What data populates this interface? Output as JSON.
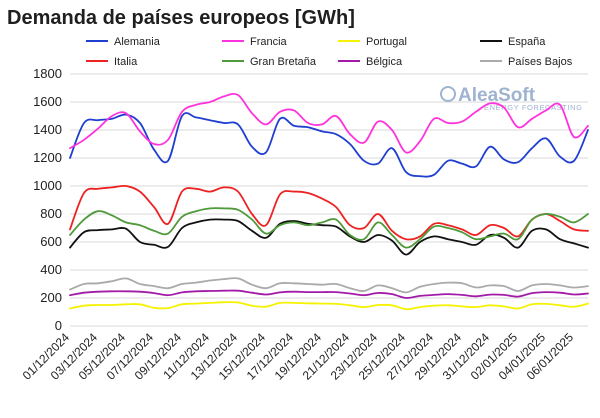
{
  "chart_data": {
    "type": "line",
    "title": "Demanda de países europeos [GWh]",
    "xlabel": "",
    "ylabel": "",
    "ylim": [
      0,
      1800
    ],
    "yticks": [
      0,
      200,
      400,
      600,
      800,
      1000,
      1200,
      1400,
      1600,
      1800
    ],
    "grid": true,
    "legend_position": "top",
    "watermark": {
      "brand": "AleaSoft",
      "tagline": "ENERGY FORECASTING"
    },
    "x": [
      "01/12/2024",
      "02/12/2024",
      "03/12/2024",
      "04/12/2024",
      "05/12/2024",
      "06/12/2024",
      "07/12/2024",
      "08/12/2024",
      "09/12/2024",
      "10/12/2024",
      "11/12/2024",
      "12/12/2024",
      "13/12/2024",
      "14/12/2024",
      "15/12/2024",
      "16/12/2024",
      "17/12/2024",
      "18/12/2024",
      "19/12/2024",
      "20/12/2024",
      "21/12/2024",
      "22/12/2024",
      "23/12/2024",
      "24/12/2024",
      "25/12/2024",
      "26/12/2024",
      "27/12/2024",
      "28/12/2024",
      "29/12/2024",
      "30/12/2024",
      "31/12/2024",
      "01/01/2025",
      "02/01/2025",
      "03/01/2025",
      "04/01/2025",
      "05/01/2025",
      "06/01/2025",
      "07/01/2025"
    ],
    "xtick_labels": [
      "01/12/2024",
      "03/12/2024",
      "05/12/2024",
      "07/12/2024",
      "09/12/2024",
      "11/12/2024",
      "13/12/2024",
      "15/12/2024",
      "17/12/2024",
      "19/12/2024",
      "21/12/2024",
      "23/12/2024",
      "25/12/2024",
      "27/12/2024",
      "29/12/2024",
      "31/12/2024",
      "02/01/2025",
      "04/01/2025",
      "06/01/2025"
    ],
    "series": [
      {
        "name": "Alemania",
        "color": "#1f3fd0",
        "values": [
          1200,
          1450,
          1470,
          1480,
          1510,
          1450,
          1260,
          1180,
          1500,
          1490,
          1470,
          1450,
          1440,
          1280,
          1240,
          1480,
          1430,
          1420,
          1390,
          1370,
          1300,
          1180,
          1160,
          1270,
          1100,
          1070,
          1080,
          1180,
          1160,
          1140,
          1280,
          1190,
          1170,
          1270,
          1340,
          1210,
          1180,
          1400
        ]
      },
      {
        "name": "Francia",
        "color": "#ff33dd",
        "values": [
          1270,
          1330,
          1410,
          1500,
          1520,
          1390,
          1300,
          1330,
          1530,
          1580,
          1600,
          1640,
          1650,
          1520,
          1440,
          1530,
          1540,
          1450,
          1440,
          1500,
          1370,
          1310,
          1460,
          1400,
          1240,
          1320,
          1480,
          1450,
          1460,
          1530,
          1590,
          1560,
          1420,
          1480,
          1540,
          1580,
          1350,
          1430
        ]
      },
      {
        "name": "Portugal",
        "color": "#f5f200",
        "values": [
          125,
          145,
          150,
          150,
          155,
          155,
          130,
          128,
          155,
          160,
          165,
          170,
          168,
          145,
          138,
          165,
          165,
          162,
          160,
          158,
          148,
          135,
          150,
          148,
          120,
          135,
          145,
          148,
          140,
          135,
          148,
          140,
          125,
          155,
          158,
          148,
          138,
          160
        ]
      },
      {
        "name": "España",
        "color": "#111111",
        "values": [
          560,
          670,
          685,
          690,
          695,
          600,
          580,
          565,
          700,
          740,
          760,
          760,
          750,
          680,
          630,
          730,
          750,
          730,
          720,
          710,
          640,
          600,
          650,
          610,
          510,
          600,
          640,
          620,
          600,
          580,
          650,
          630,
          560,
          680,
          690,
          620,
          590,
          560
        ]
      },
      {
        "name": "Italia",
        "color": "#ee2222",
        "values": [
          690,
          950,
          980,
          990,
          1000,
          960,
          850,
          730,
          960,
          980,
          960,
          990,
          960,
          800,
          720,
          940,
          960,
          950,
          910,
          850,
          720,
          700,
          800,
          680,
          620,
          640,
          730,
          720,
          690,
          650,
          720,
          700,
          640,
          760,
          800,
          750,
          690,
          680
        ]
      },
      {
        "name": "Gran Bretaña",
        "color": "#4f9a3a",
        "values": [
          650,
          760,
          820,
          790,
          740,
          720,
          680,
          660,
          780,
          820,
          840,
          840,
          830,
          760,
          660,
          720,
          740,
          720,
          740,
          760,
          650,
          620,
          740,
          650,
          560,
          620,
          710,
          700,
          670,
          620,
          640,
          660,
          620,
          760,
          800,
          780,
          740,
          800
        ]
      },
      {
        "name": "Bélgica",
        "color": "#a21ba8",
        "values": [
          220,
          238,
          245,
          248,
          248,
          245,
          235,
          220,
          240,
          248,
          250,
          252,
          252,
          238,
          225,
          240,
          245,
          242,
          242,
          242,
          232,
          220,
          236,
          228,
          200,
          215,
          222,
          228,
          222,
          212,
          224,
          222,
          210,
          235,
          242,
          238,
          225,
          232
        ]
      },
      {
        "name": "Países Bajos",
        "color": "#aaaaaa",
        "values": [
          260,
          300,
          305,
          320,
          340,
          300,
          285,
          270,
          300,
          310,
          325,
          335,
          340,
          295,
          270,
          305,
          305,
          300,
          295,
          300,
          270,
          250,
          290,
          270,
          240,
          280,
          300,
          310,
          305,
          275,
          290,
          285,
          250,
          290,
          300,
          290,
          275,
          285
        ]
      }
    ]
  }
}
